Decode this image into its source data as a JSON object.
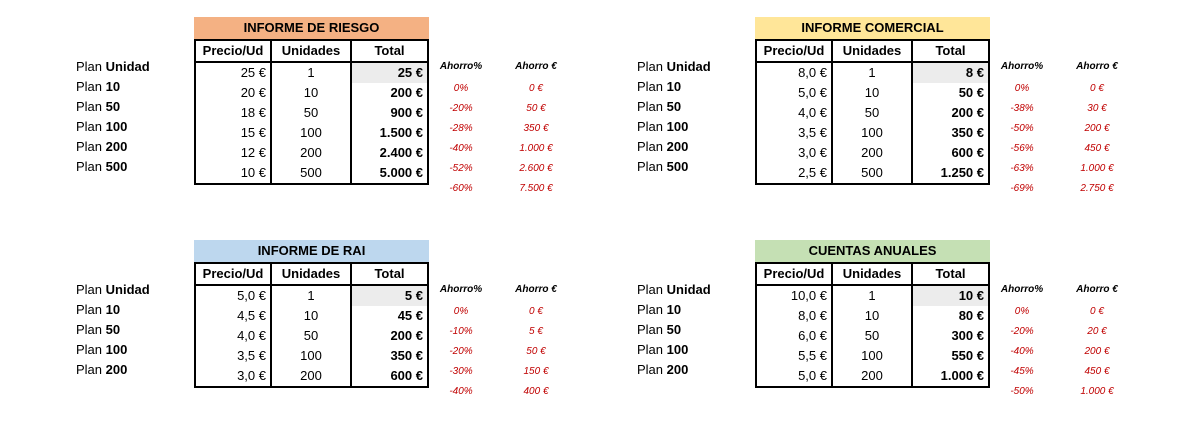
{
  "headers": {
    "precio": "Precio/Ud",
    "unidades": "Unidades",
    "total": "Total",
    "ahorro_pct": "Ahorro%",
    "ahorro_eur": "Ahorro €"
  },
  "tables": [
    {
      "title": "INFORME DE RIESGO",
      "title_bg": "#f4b183",
      "rows": [
        {
          "prefix": "Plan ",
          "name": "Unidad",
          "precio": "25 €",
          "unidades": "1",
          "total": "25 €",
          "ahorro_pct": "0%",
          "ahorro_eur": "0 €"
        },
        {
          "prefix": "Plan ",
          "name": "10",
          "precio": "20 €",
          "unidades": "10",
          "total": "200 €",
          "ahorro_pct": "-20%",
          "ahorro_eur": "50 €"
        },
        {
          "prefix": "Plan ",
          "name": "50",
          "precio": "18 €",
          "unidades": "50",
          "total": "900 €",
          "ahorro_pct": "-28%",
          "ahorro_eur": "350 €"
        },
        {
          "prefix": "Plan ",
          "name": "100",
          "precio": "15 €",
          "unidades": "100",
          "total": "1.500 €",
          "ahorro_pct": "-40%",
          "ahorro_eur": "1.000 €"
        },
        {
          "prefix": "Plan ",
          "name": "200",
          "precio": "12 €",
          "unidades": "200",
          "total": "2.400 €",
          "ahorro_pct": "-52%",
          "ahorro_eur": "2.600 €"
        },
        {
          "prefix": "Plan ",
          "name": "500",
          "precio": "10 €",
          "unidades": "500",
          "total": "5.000 €",
          "ahorro_pct": "-60%",
          "ahorro_eur": "7.500 €"
        }
      ]
    },
    {
      "title": "INFORME COMERCIAL",
      "title_bg": "#ffe699",
      "rows": [
        {
          "prefix": "Plan ",
          "name": "Unidad",
          "precio": "8,0 €",
          "unidades": "1",
          "total": "8 €",
          "ahorro_pct": "0%",
          "ahorro_eur": "0 €"
        },
        {
          "prefix": "Plan ",
          "name": "10",
          "precio": "5,0 €",
          "unidades": "10",
          "total": "50 €",
          "ahorro_pct": "-38%",
          "ahorro_eur": "30 €"
        },
        {
          "prefix": "Plan ",
          "name": "50",
          "precio": "4,0 €",
          "unidades": "50",
          "total": "200 €",
          "ahorro_pct": "-50%",
          "ahorro_eur": "200 €"
        },
        {
          "prefix": "Plan ",
          "name": "100",
          "precio": "3,5 €",
          "unidades": "100",
          "total": "350 €",
          "ahorro_pct": "-56%",
          "ahorro_eur": "450 €"
        },
        {
          "prefix": "Plan ",
          "name": "200",
          "precio": "3,0 €",
          "unidades": "200",
          "total": "600 €",
          "ahorro_pct": "-63%",
          "ahorro_eur": "1.000 €"
        },
        {
          "prefix": "Plan ",
          "name": "500",
          "precio": "2,5 €",
          "unidades": "500",
          "total": "1.250 €",
          "ahorro_pct": "-69%",
          "ahorro_eur": "2.750 €"
        }
      ]
    },
    {
      "title": "INFORME DE RAI",
      "title_bg": "#bdd7ee",
      "rows": [
        {
          "prefix": "Plan ",
          "name": "Unidad",
          "precio": "5,0 €",
          "unidades": "1",
          "total": "5 €",
          "ahorro_pct": "0%",
          "ahorro_eur": "0 €"
        },
        {
          "prefix": "Plan ",
          "name": "10",
          "precio": "4,5 €",
          "unidades": "10",
          "total": "45 €",
          "ahorro_pct": "-10%",
          "ahorro_eur": "5 €"
        },
        {
          "prefix": "Plan ",
          "name": "50",
          "precio": "4,0 €",
          "unidades": "50",
          "total": "200 €",
          "ahorro_pct": "-20%",
          "ahorro_eur": "50 €"
        },
        {
          "prefix": "Plan ",
          "name": "100",
          "precio": "3,5 €",
          "unidades": "100",
          "total": "350 €",
          "ahorro_pct": "-30%",
          "ahorro_eur": "150 €"
        },
        {
          "prefix": "Plan ",
          "name": "200",
          "precio": "3,0 €",
          "unidades": "200",
          "total": "600 €",
          "ahorro_pct": "-40%",
          "ahorro_eur": "400 €"
        }
      ]
    },
    {
      "title": "CUENTAS ANUALES",
      "title_bg": "#c5e0b4",
      "rows": [
        {
          "prefix": "Plan ",
          "name": "Unidad",
          "precio": "10,0 €",
          "unidades": "1",
          "total": "10 €",
          "ahorro_pct": "0%",
          "ahorro_eur": "0 €"
        },
        {
          "prefix": "Plan ",
          "name": "10",
          "precio": "8,0 €",
          "unidades": "10",
          "total": "80 €",
          "ahorro_pct": "-20%",
          "ahorro_eur": "20 €"
        },
        {
          "prefix": "Plan ",
          "name": "50",
          "precio": "6,0 €",
          "unidades": "50",
          "total": "300 €",
          "ahorro_pct": "-40%",
          "ahorro_eur": "200 €"
        },
        {
          "prefix": "Plan ",
          "name": "100",
          "precio": "5,5 €",
          "unidades": "100",
          "total": "550 €",
          "ahorro_pct": "-45%",
          "ahorro_eur": "450 €"
        },
        {
          "prefix": "Plan ",
          "name": "200",
          "precio": "5,0 €",
          "unidades": "200",
          "total": "1.000 €",
          "ahorro_pct": "-50%",
          "ahorro_eur": "1.000 €"
        }
      ]
    }
  ]
}
